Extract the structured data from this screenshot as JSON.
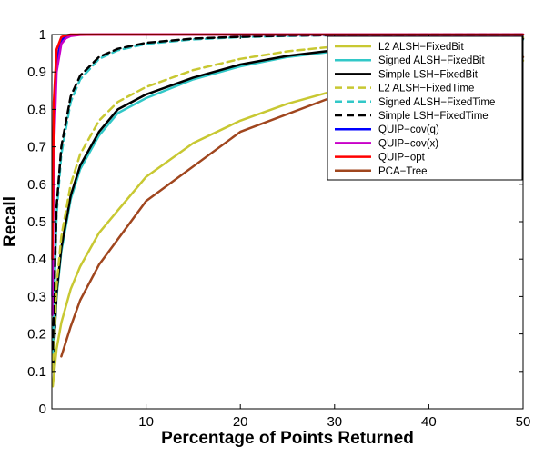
{
  "chart_data": {
    "type": "line",
    "title": "",
    "xlabel": "Percentage of Points Returned",
    "ylabel": "Recall",
    "xlim": [
      0,
      50
    ],
    "ylim": [
      0,
      1
    ],
    "xticks": [
      10,
      20,
      30,
      40,
      50
    ],
    "yticks": [
      0,
      0.1,
      0.2,
      0.3,
      0.4,
      0.5,
      0.6,
      0.7,
      0.8,
      0.9,
      1
    ],
    "grid": false,
    "legend_position": "top-right",
    "series": [
      {
        "name": "L2 ALSH−FixedBit",
        "color": "#c8c832",
        "dash": "solid",
        "x": [
          0.1,
          0.5,
          1,
          2,
          3,
          5,
          7,
          10,
          15,
          20,
          25,
          30,
          35,
          40,
          45,
          50
        ],
        "y": [
          0.06,
          0.16,
          0.23,
          0.32,
          0.38,
          0.47,
          0.53,
          0.62,
          0.71,
          0.77,
          0.815,
          0.85,
          0.875,
          0.895,
          0.91,
          0.93
        ]
      },
      {
        "name": "Signed ALSH−FixedBit",
        "color": "#32c8c8",
        "dash": "solid",
        "x": [
          0.1,
          0.5,
          1,
          2,
          3,
          5,
          7,
          10,
          15,
          20,
          25,
          30,
          35,
          40,
          45,
          50
        ],
        "y": [
          0.1,
          0.3,
          0.42,
          0.56,
          0.64,
          0.73,
          0.79,
          0.83,
          0.88,
          0.915,
          0.94,
          0.955,
          0.965,
          0.975,
          0.982,
          0.987
        ]
      },
      {
        "name": "Simple LSH−FixedBit",
        "color": "#000000",
        "dash": "solid",
        "x": [
          0.1,
          0.5,
          1,
          2,
          3,
          5,
          7,
          10,
          15,
          20,
          25,
          30,
          35,
          40,
          45,
          50
        ],
        "y": [
          0.1,
          0.31,
          0.43,
          0.57,
          0.65,
          0.74,
          0.8,
          0.84,
          0.885,
          0.92,
          0.943,
          0.958,
          0.968,
          0.977,
          0.984,
          0.989
        ]
      },
      {
        "name": "L2 ALSH−FixedTime",
        "color": "#c8c832",
        "dash": "dashed",
        "x": [
          0.1,
          0.5,
          1,
          2,
          3,
          5,
          7,
          10,
          15,
          20,
          25,
          30,
          35,
          40,
          45,
          50
        ],
        "y": [
          0.1,
          0.33,
          0.46,
          0.6,
          0.68,
          0.77,
          0.82,
          0.86,
          0.905,
          0.935,
          0.955,
          0.968,
          0.977,
          0.984,
          0.989,
          0.992
        ]
      },
      {
        "name": "Signed ALSH−FixedTime",
        "color": "#32c8c8",
        "dash": "dashed",
        "x": [
          0.1,
          0.5,
          1,
          2,
          3,
          5,
          7,
          10,
          15,
          20,
          25,
          30,
          35,
          40,
          45,
          50
        ],
        "y": [
          0.15,
          0.52,
          0.68,
          0.82,
          0.88,
          0.935,
          0.958,
          0.975,
          0.987,
          0.993,
          0.996,
          0.998,
          0.999,
          0.999,
          1.0,
          1.0
        ]
      },
      {
        "name": "Simple LSH−FixedTime",
        "color": "#000000",
        "dash": "dashed",
        "x": [
          0.1,
          0.5,
          1,
          2,
          3,
          5,
          7,
          10,
          15,
          20,
          25,
          30,
          35,
          40,
          45,
          50
        ],
        "y": [
          0.16,
          0.54,
          0.7,
          0.835,
          0.89,
          0.94,
          0.962,
          0.978,
          0.989,
          0.994,
          0.997,
          0.998,
          0.999,
          1.0,
          1.0,
          1.0
        ]
      },
      {
        "name": "QUIP−cov(q)",
        "color": "#0000ff",
        "dash": "solid",
        "x": [
          0.05,
          0.2,
          0.5,
          1,
          1.5,
          2,
          3,
          5,
          10,
          20,
          30,
          40,
          50
        ],
        "y": [
          0.3,
          0.75,
          0.93,
          0.985,
          0.995,
          0.998,
          1.0,
          1.0,
          1.0,
          1.0,
          1.0,
          1.0,
          1.0
        ]
      },
      {
        "name": "QUIP−cov(x)",
        "color": "#c800c8",
        "dash": "solid",
        "x": [
          0.05,
          0.2,
          0.5,
          1,
          1.5,
          2,
          3,
          5,
          10,
          20,
          30,
          40,
          50
        ],
        "y": [
          0.25,
          0.68,
          0.9,
          0.975,
          0.99,
          0.996,
          0.999,
          1.0,
          1.0,
          1.0,
          1.0,
          1.0,
          1.0
        ]
      },
      {
        "name": "QUIP−opt",
        "color": "#ff0000",
        "dash": "solid",
        "x": [
          0.05,
          0.2,
          0.5,
          1,
          1.5,
          2,
          3,
          5,
          10,
          20,
          30,
          40,
          50
        ],
        "y": [
          0.4,
          0.82,
          0.96,
          0.993,
          0.998,
          1.0,
          1.0,
          1.0,
          1.0,
          1.0,
          1.0,
          1.0,
          1.0
        ]
      },
      {
        "name": "PCA−Tree",
        "color": "#a0461e",
        "dash": "solid",
        "x": [
          1,
          2,
          3,
          5,
          10,
          20,
          30,
          40,
          50
        ],
        "y": [
          0.14,
          0.22,
          0.29,
          0.385,
          0.555,
          0.74,
          0.835,
          0.9,
          0.94
        ]
      }
    ]
  }
}
